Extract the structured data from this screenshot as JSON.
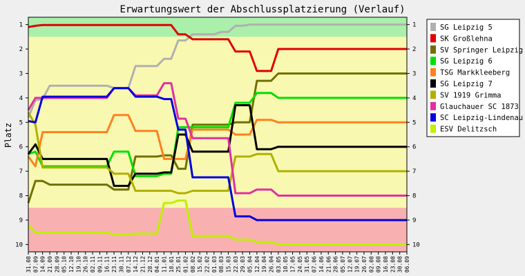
{
  "chart_data": {
    "type": "line",
    "title": "Erwartungswert der Abschlussplatzierung (Verlauf)",
    "ylabel": "Platz",
    "xlabel": "",
    "ylim": [
      10.3,
      0.7
    ],
    "y_inverted": true,
    "y_ticks": [
      1,
      2,
      3,
      4,
      5,
      6,
      7,
      8,
      9,
      10
    ],
    "grid": false,
    "legend_position": "right",
    "bands": [
      {
        "from": 0.7,
        "to": 1.5,
        "color": "#aaf0aa"
      },
      {
        "from": 1.5,
        "to": 8.5,
        "color": "#f8f8b0"
      },
      {
        "from": 8.5,
        "to": 10.3,
        "color": "#f8b0b0"
      }
    ],
    "x": [
      "31.08",
      "07.09",
      "14.09",
      "21.09",
      "28.09",
      "05.10",
      "12.10",
      "19.10",
      "26.10",
      "02.11",
      "09.11",
      "16.11",
      "23.11",
      "30.11",
      "07.12",
      "14.12",
      "21.12",
      "28.12",
      "04.01",
      "11.01",
      "18.01",
      "25.01",
      "01.02",
      "08.02",
      "15.02",
      "22.02",
      "01.03",
      "08.03",
      "15.03",
      "22.03",
      "29.03",
      "05.04",
      "12.04",
      "19.04",
      "26.04",
      "03.05",
      "10.05",
      "17.05",
      "24.05",
      "31.05",
      "07.06",
      "14.06",
      "21.06",
      "28.06",
      "05.07",
      "12.07",
      "19.07",
      "26.07",
      "02.08",
      "09.08",
      "16.08",
      "23.08",
      "30.08",
      "06.09"
    ],
    "series": [
      {
        "name": "SG Leipzig 5",
        "color": "#b0b0b0",
        "values": [
          4.8,
          4.1,
          4.05,
          3.5,
          3.5,
          3.5,
          3.5,
          3.5,
          3.5,
          3.5,
          3.5,
          3.5,
          3.6,
          3.6,
          3.6,
          2.7,
          2.7,
          2.7,
          2.7,
          2.4,
          2.4,
          1.65,
          1.65,
          1.4,
          1.4,
          1.4,
          1.4,
          1.3,
          1.3,
          1.05,
          1.05,
          1.0,
          1.0,
          1.0,
          1.0,
          1.0,
          1.0,
          1.0,
          1.0,
          1.0,
          1.0,
          1.0,
          1.0,
          1.0,
          1.0,
          1.0,
          1.0,
          1.0,
          1.0,
          1.0,
          1.0,
          1.0,
          1.0,
          1.0
        ]
      },
      {
        "name": "SK Großlehna",
        "color": "#e00000",
        "values": [
          1.1,
          1.05,
          1.02,
          1.02,
          1.02,
          1.02,
          1.02,
          1.02,
          1.02,
          1.02,
          1.02,
          1.02,
          1.02,
          1.02,
          1.02,
          1.02,
          1.02,
          1.02,
          1.02,
          1.02,
          1.02,
          1.4,
          1.4,
          1.6,
          1.6,
          1.6,
          1.6,
          1.6,
          1.6,
          2.1,
          2.1,
          2.1,
          2.9,
          2.9,
          2.9,
          2.0,
          2.0,
          2.0,
          2.0,
          2.0,
          2.0,
          2.0,
          2.0,
          2.0,
          2.0,
          2.0,
          2.0,
          2.0,
          2.0,
          2.0,
          2.0,
          2.0,
          2.0,
          2.0
        ]
      },
      {
        "name": "SV Springer Leipzig",
        "color": "#707000",
        "values": [
          8.3,
          7.4,
          7.4,
          7.55,
          7.55,
          7.55,
          7.55,
          7.55,
          7.55,
          7.55,
          7.55,
          7.55,
          7.75,
          7.75,
          7.75,
          6.4,
          6.4,
          6.4,
          6.4,
          6.35,
          6.35,
          6.9,
          6.9,
          5.1,
          5.1,
          5.1,
          5.1,
          5.1,
          5.1,
          5.0,
          5.0,
          5.0,
          3.3,
          3.3,
          3.3,
          3.0,
          3.0,
          3.0,
          3.0,
          3.0,
          3.0,
          3.0,
          3.0,
          3.0,
          3.0,
          3.0,
          3.0,
          3.0,
          3.0,
          3.0,
          3.0,
          3.0,
          3.0,
          3.0
        ]
      },
      {
        "name": "SG Leipzig 6",
        "color": "#00e000",
        "values": [
          6.3,
          6.2,
          6.8,
          6.8,
          6.8,
          6.8,
          6.8,
          6.8,
          6.8,
          6.8,
          6.8,
          6.8,
          6.2,
          6.2,
          6.2,
          7.2,
          7.2,
          7.2,
          7.2,
          7.1,
          7.1,
          5.2,
          5.2,
          5.2,
          5.2,
          5.2,
          5.2,
          5.2,
          5.2,
          4.2,
          4.2,
          4.2,
          3.8,
          3.8,
          3.8,
          4.0,
          4.0,
          4.0,
          4.0,
          4.0,
          4.0,
          4.0,
          4.0,
          4.0,
          4.0,
          4.0,
          4.0,
          4.0,
          4.0,
          4.0,
          4.0,
          4.0,
          4.0,
          4.0
        ]
      },
      {
        "name": "TSG Markkleeberg",
        "color": "#ff8020",
        "values": [
          6.4,
          6.8,
          5.4,
          5.4,
          5.4,
          5.4,
          5.4,
          5.4,
          5.4,
          5.4,
          5.4,
          5.4,
          4.7,
          4.7,
          4.7,
          5.35,
          5.35,
          5.35,
          5.35,
          6.5,
          6.5,
          6.5,
          6.5,
          5.3,
          5.3,
          5.3,
          5.3,
          5.3,
          5.3,
          5.5,
          5.5,
          5.5,
          4.9,
          4.9,
          4.9,
          5.0,
          5.0,
          5.0,
          5.0,
          5.0,
          5.0,
          5.0,
          5.0,
          5.0,
          5.0,
          5.0,
          5.0,
          5.0,
          5.0,
          5.0,
          5.0,
          5.0,
          5.0,
          5.0
        ]
      },
      {
        "name": "SG Leipzig 7",
        "color": "#000000",
        "values": [
          6.3,
          5.9,
          6.5,
          6.5,
          6.5,
          6.5,
          6.5,
          6.5,
          6.5,
          6.5,
          6.5,
          6.5,
          7.6,
          7.6,
          7.6,
          7.1,
          7.1,
          7.1,
          7.1,
          7.05,
          7.05,
          5.5,
          5.5,
          6.2,
          6.2,
          6.2,
          6.2,
          6.2,
          6.2,
          4.3,
          4.3,
          4.3,
          6.1,
          6.1,
          6.1,
          6.0,
          6.0,
          6.0,
          6.0,
          6.0,
          6.0,
          6.0,
          6.0,
          6.0,
          6.0,
          6.0,
          6.0,
          6.0,
          6.0,
          6.0,
          6.0,
          6.0,
          6.0,
          6.0
        ]
      },
      {
        "name": "SV 1919 Grimma",
        "color": "#b0b000",
        "values": [
          4.6,
          5.1,
          6.85,
          6.85,
          6.85,
          6.85,
          6.85,
          6.85,
          6.85,
          6.85,
          6.85,
          6.85,
          7.1,
          7.1,
          7.1,
          7.8,
          7.8,
          7.8,
          7.8,
          7.8,
          7.8,
          7.9,
          7.9,
          7.8,
          7.8,
          7.8,
          7.8,
          7.8,
          7.8,
          6.4,
          6.4,
          6.4,
          6.3,
          6.3,
          6.3,
          7.0,
          7.0,
          7.0,
          7.0,
          7.0,
          7.0,
          7.0,
          7.0,
          7.0,
          7.0,
          7.0,
          7.0,
          7.0,
          7.0,
          7.0,
          7.0,
          7.0,
          7.0,
          7.0
        ]
      },
      {
        "name": "Glauchauer SC 1873",
        "color": "#e030a0",
        "values": [
          4.5,
          4.0,
          4.0,
          4.0,
          4.0,
          4.0,
          4.0,
          4.0,
          4.0,
          4.0,
          4.0,
          4.0,
          3.6,
          3.6,
          3.6,
          3.9,
          3.9,
          3.9,
          3.9,
          3.4,
          3.4,
          4.85,
          4.85,
          5.65,
          5.65,
          5.65,
          5.65,
          5.65,
          5.65,
          7.9,
          7.9,
          7.9,
          7.75,
          7.75,
          7.75,
          8.0,
          8.0,
          8.0,
          8.0,
          8.0,
          8.0,
          8.0,
          8.0,
          8.0,
          8.0,
          8.0,
          8.0,
          8.0,
          8.0,
          8.0,
          8.0,
          8.0,
          8.0,
          8.0
        ]
      },
      {
        "name": "SC Leipzig-Lindenau",
        "color": "#0000e0",
        "values": [
          4.95,
          5.0,
          3.95,
          3.95,
          3.95,
          3.95,
          3.95,
          3.95,
          3.95,
          3.95,
          3.95,
          3.95,
          3.6,
          3.6,
          3.6,
          3.95,
          3.95,
          3.95,
          3.95,
          4.05,
          4.05,
          5.3,
          5.3,
          7.25,
          7.25,
          7.25,
          7.25,
          7.25,
          7.25,
          8.85,
          8.85,
          8.85,
          9.0,
          9.0,
          9.0,
          9.0,
          9.0,
          9.0,
          9.0,
          9.0,
          9.0,
          9.0,
          9.0,
          9.0,
          9.0,
          9.0,
          9.0,
          9.0,
          9.0,
          9.0,
          9.0,
          9.0,
          9.0,
          9.0
        ]
      },
      {
        "name": "ESV Delitzsch",
        "color": "#c0f000",
        "values": [
          9.2,
          9.5,
          9.5,
          9.5,
          9.5,
          9.5,
          9.5,
          9.5,
          9.5,
          9.5,
          9.5,
          9.5,
          9.6,
          9.6,
          9.6,
          9.55,
          9.55,
          9.55,
          9.55,
          8.3,
          8.3,
          8.2,
          8.2,
          9.65,
          9.65,
          9.65,
          9.65,
          9.65,
          9.65,
          9.8,
          9.8,
          9.8,
          9.9,
          9.9,
          9.9,
          10.0,
          10.0,
          10.0,
          10.0,
          10.0,
          10.0,
          10.0,
          10.0,
          10.0,
          10.0,
          10.0,
          10.0,
          10.0,
          10.0,
          10.0,
          10.0,
          10.0,
          10.0,
          10.0
        ]
      }
    ]
  }
}
